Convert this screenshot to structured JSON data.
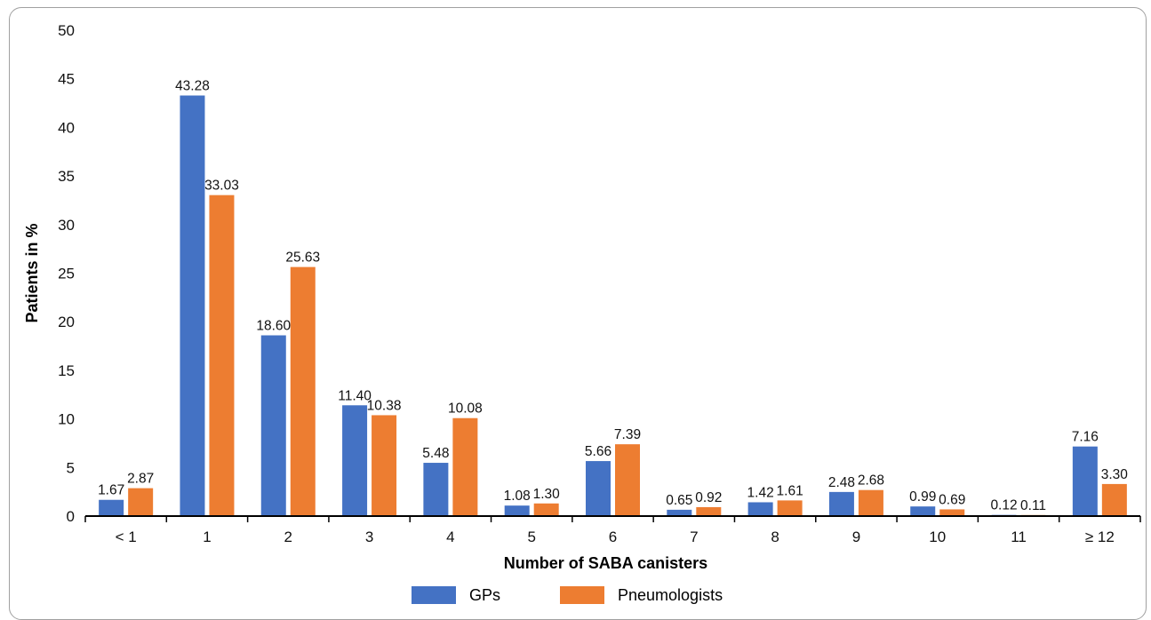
{
  "chart_data": {
    "type": "bar",
    "title": "",
    "xlabel": "Number of SABA canisters",
    "ylabel": "Patients in %",
    "ylim": [
      0,
      50
    ],
    "yticks": [
      0,
      5,
      10,
      15,
      20,
      25,
      30,
      35,
      40,
      45,
      50
    ],
    "categories": [
      "< 1",
      "1",
      "2",
      "3",
      "4",
      "5",
      "6",
      "7",
      "8",
      "9",
      "10",
      "11",
      "≥ 12"
    ],
    "series": [
      {
        "name": "GPs",
        "color": "#4472C4",
        "values": [
          1.67,
          43.28,
          18.6,
          11.4,
          5.48,
          1.08,
          5.66,
          0.65,
          1.42,
          2.48,
          0.99,
          0.12,
          7.16
        ],
        "labels": [
          "1.67",
          "43.28",
          "18.60",
          "11.40",
          "5.48",
          "1.08",
          "5.66",
          "0.65",
          "1.42",
          "2.48",
          "0.99",
          "0.12",
          "7.16"
        ]
      },
      {
        "name": "Pneumologists",
        "color": "#ED7D31",
        "values": [
          2.87,
          33.03,
          25.63,
          10.38,
          10.08,
          1.3,
          7.39,
          0.92,
          1.61,
          2.68,
          0.69,
          0.11,
          3.3
        ],
        "labels": [
          "2.87",
          "33.03",
          "25.63",
          "10.38",
          "10.08",
          "1.30",
          "7.39",
          "0.92",
          "1.61",
          "2.68",
          "0.69",
          "0.11",
          "3.30"
        ]
      }
    ],
    "grid": false,
    "legend_position": "bottom"
  }
}
